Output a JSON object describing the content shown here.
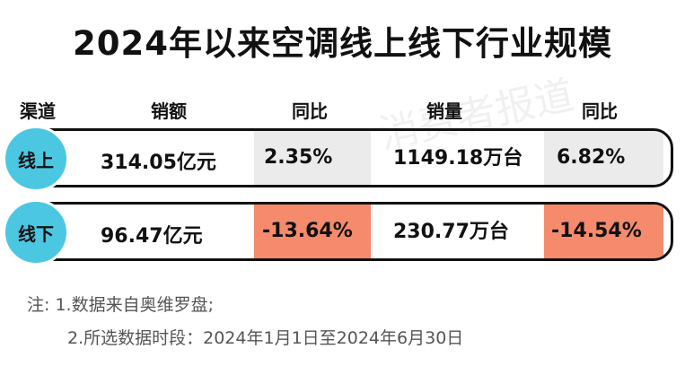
{
  "title": "2024年以来空调线上线下行业规模",
  "watermark": "消费者报道",
  "table": {
    "header": [
      "渠道",
      "销额",
      "同比",
      "销量",
      "同比"
    ],
    "rows": [
      [
        "线上",
        "314.05亿元",
        "2.35%",
        "1149.18万台",
        "6.82%"
      ],
      [
        "线下",
        "96.47亿元",
        "-13.64%",
        "230.77万台",
        "-14.54%"
      ]
    ]
  },
  "notes": [
    "注: 1.数据来自奥维罗盘;",
    "2.所选数据时段：2024年1月1日至2024年6月30日"
  ]
}
